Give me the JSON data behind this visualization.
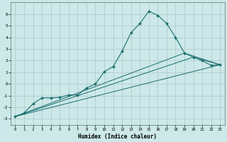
{
  "xlabel": "Humidex (Indice chaleur)",
  "bg_color": "#cce8e8",
  "grid_color": "#b0cccc",
  "line_color": "#1a6e6e",
  "xlim": [
    -0.5,
    23.5
  ],
  "ylim": [
    -3.5,
    7.0
  ],
  "yticks": [
    -3,
    -2,
    -1,
    0,
    1,
    2,
    3,
    4,
    5,
    6
  ],
  "xticks": [
    0,
    1,
    2,
    3,
    4,
    5,
    6,
    7,
    8,
    9,
    10,
    11,
    12,
    13,
    14,
    15,
    16,
    17,
    18,
    19,
    20,
    21,
    22,
    23
  ],
  "series1_x": [
    0,
    1,
    2,
    3,
    4,
    5,
    6,
    7,
    8,
    9,
    10,
    11,
    12,
    13,
    14,
    15,
    16,
    17,
    18,
    19,
    20,
    21,
    22,
    23
  ],
  "series1_y": [
    -2.8,
    -2.5,
    -1.7,
    -1.2,
    -1.2,
    -1.15,
    -0.95,
    -0.95,
    -0.35,
    0.0,
    1.05,
    1.5,
    2.8,
    4.4,
    5.2,
    6.25,
    5.9,
    5.2,
    4.0,
    2.65,
    2.3,
    2.0,
    1.6,
    1.65
  ],
  "series2_x": [
    0,
    23
  ],
  "series2_y": [
    -2.8,
    1.65
  ],
  "series3_x": [
    0,
    19,
    23
  ],
  "series3_y": [
    -2.8,
    2.65,
    1.65
  ],
  "series4_x": [
    0,
    20,
    23
  ],
  "series4_y": [
    -2.8,
    2.3,
    1.65
  ]
}
